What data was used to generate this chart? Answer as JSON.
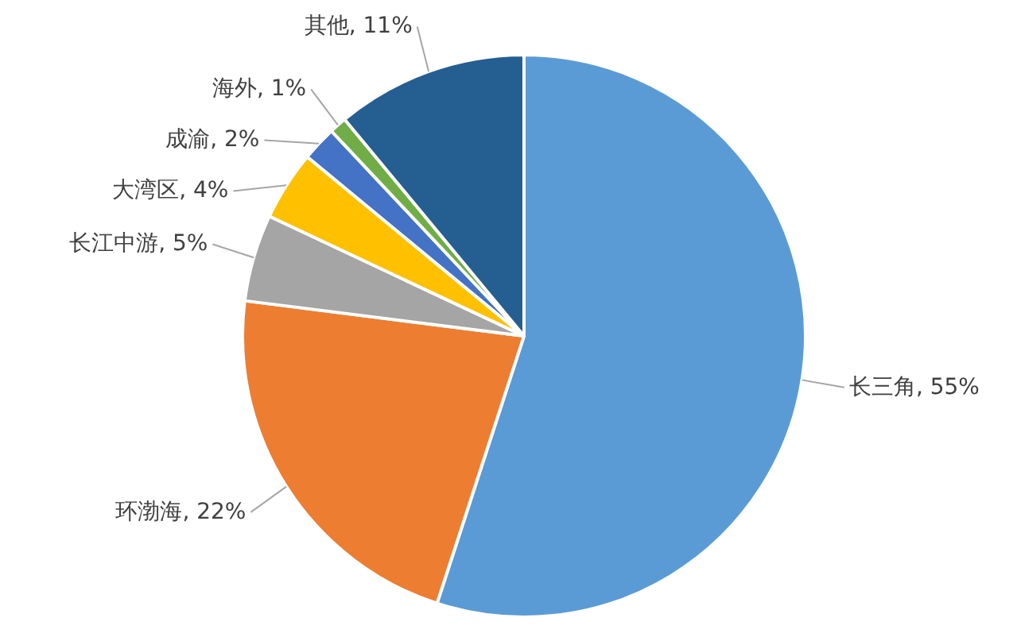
{
  "chart_data": {
    "type": "pie",
    "categories": [
      "长三角",
      "环渤海",
      "长江中游",
      "大湾区",
      "成渝",
      "海外",
      "其他"
    ],
    "values": [
      55,
      22,
      5,
      4,
      2,
      1,
      11
    ],
    "value_labels": [
      "55%",
      "22%",
      "5%",
      "4%",
      "2%",
      "1%",
      "11%"
    ],
    "colors": [
      "#5b9bd5",
      "#ed7d31",
      "#a5a5a5",
      "#ffc000",
      "#4472c4",
      "#70ad47",
      "#255e91"
    ]
  }
}
